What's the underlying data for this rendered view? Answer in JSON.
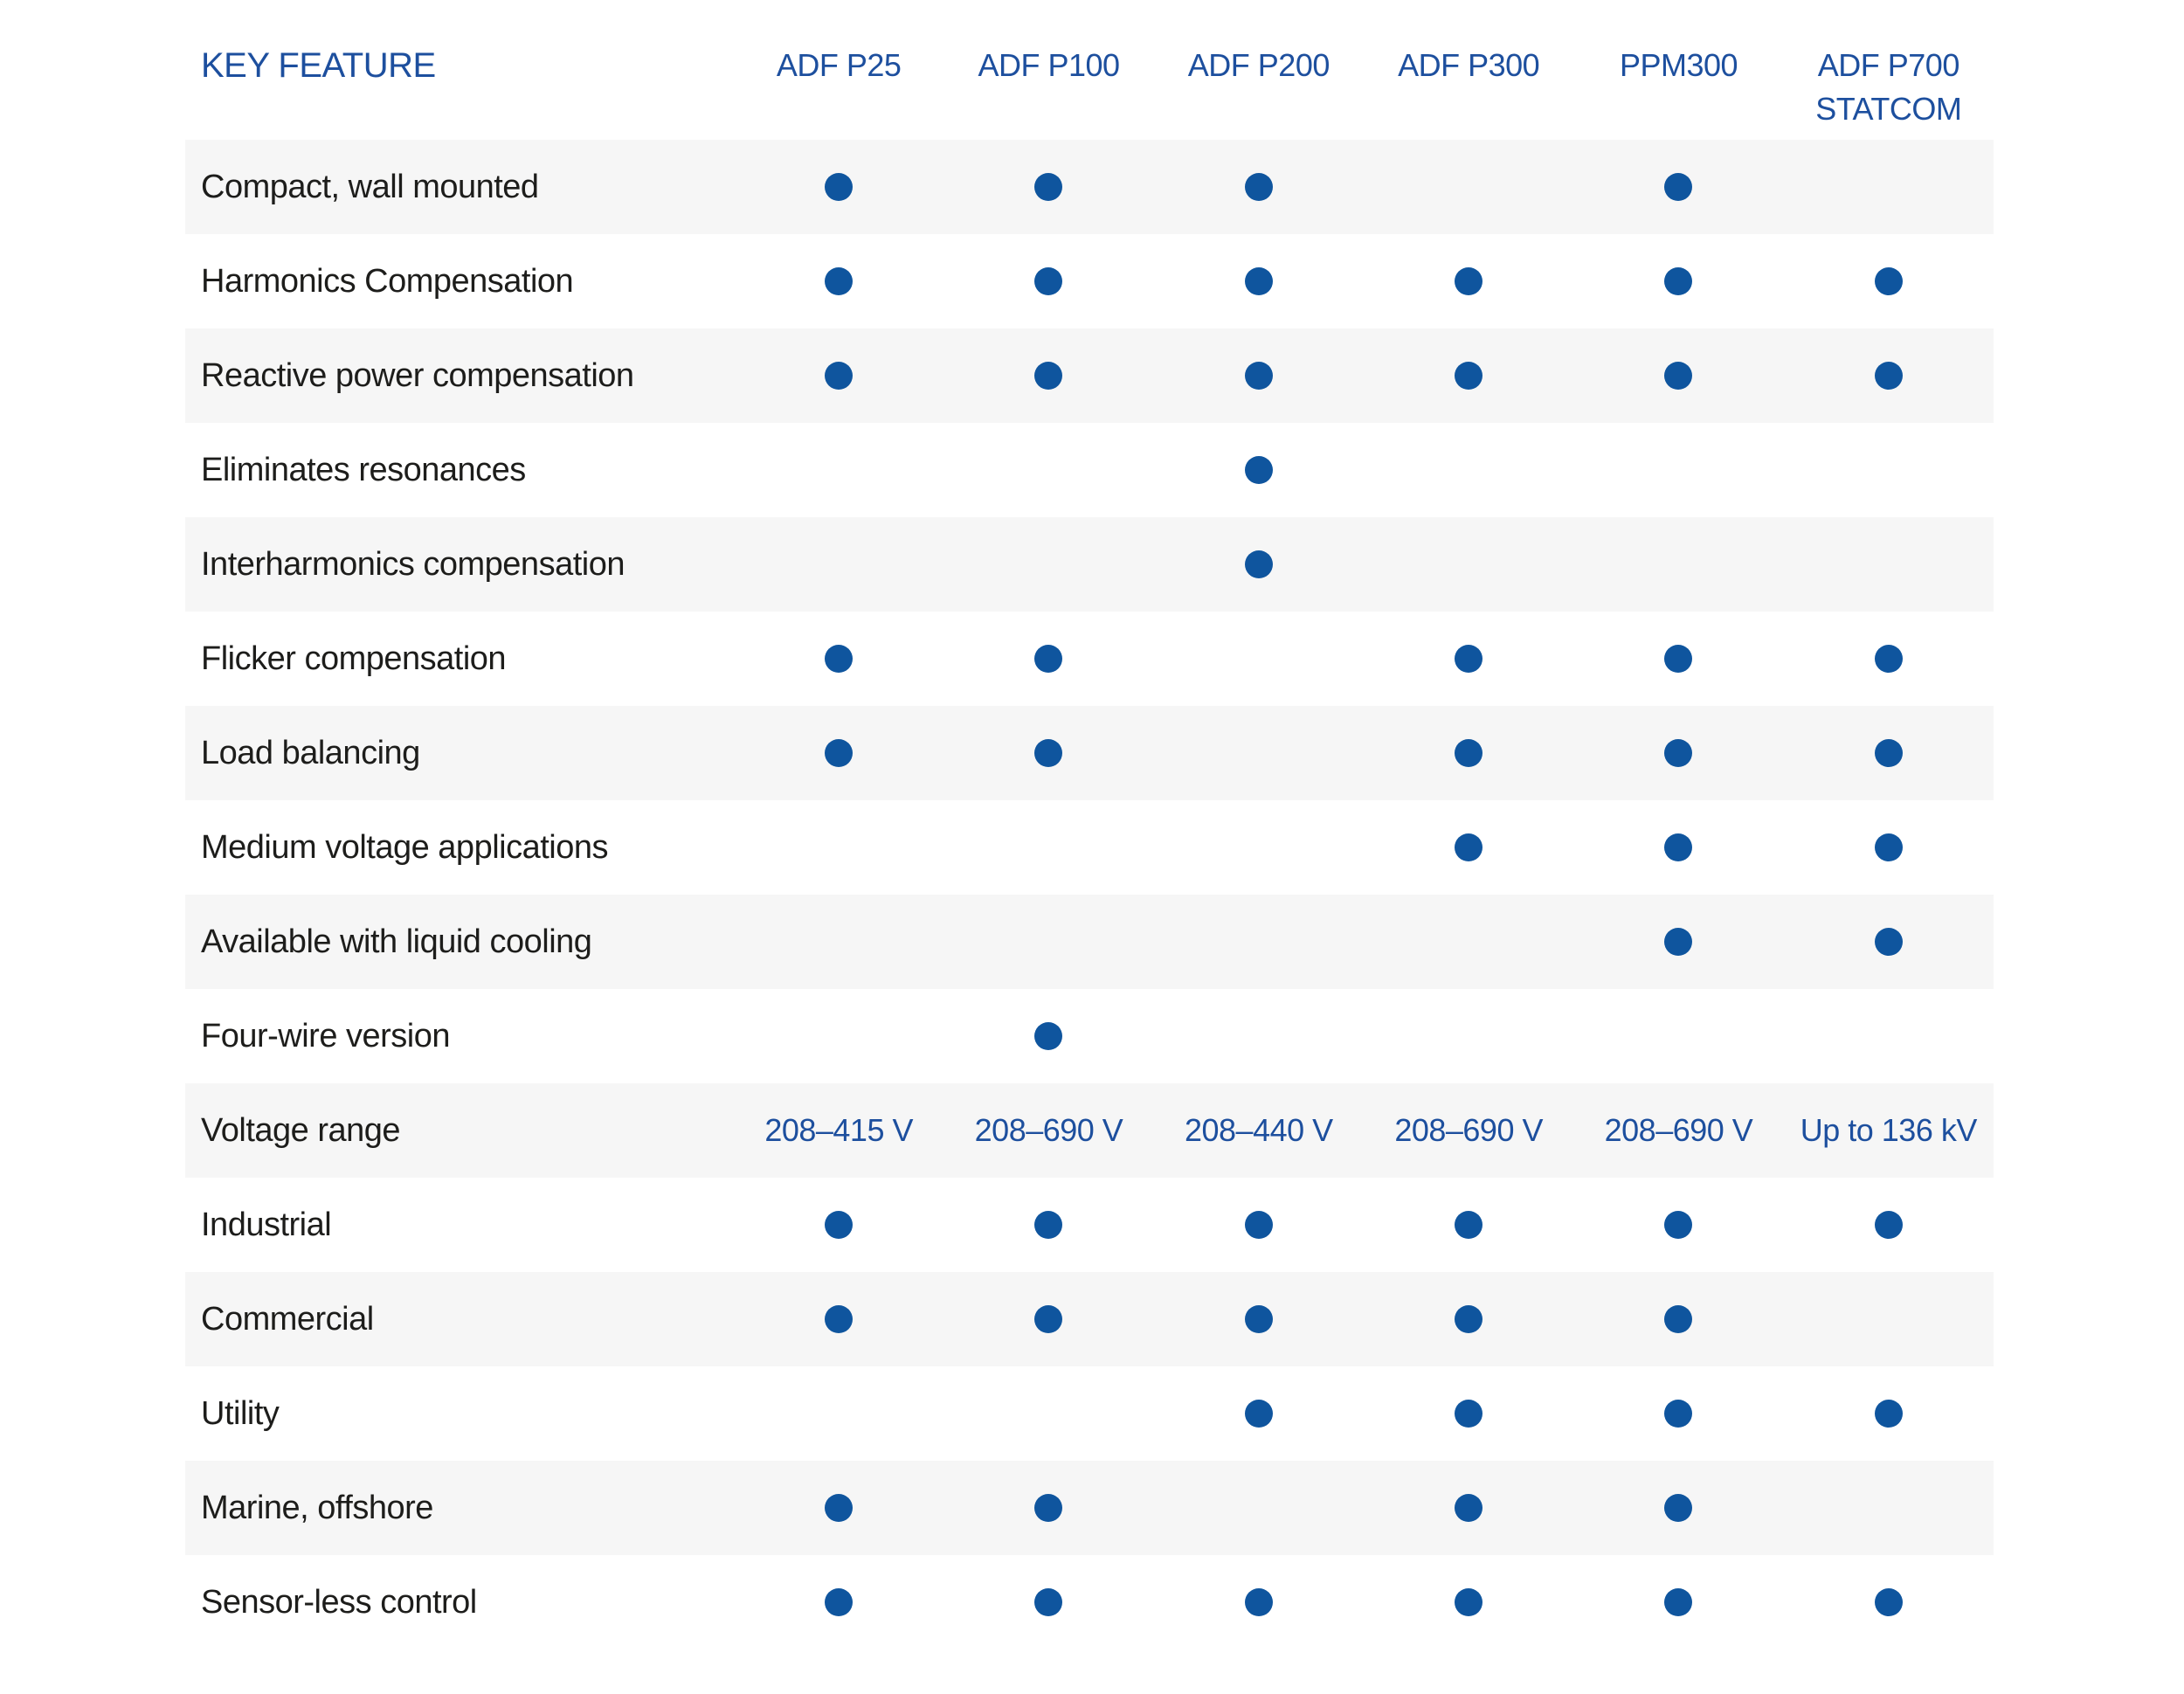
{
  "colors": {
    "brand_blue": "#1d4f9e",
    "dot_blue": "#0f559e",
    "row_stripe": "#f6f6f6",
    "text_dark": "#1d1d1b",
    "background": "#ffffff"
  },
  "header": {
    "feature_heading": "KEY FEATURE",
    "columns": [
      {
        "line1": "ADF P25",
        "line2": ""
      },
      {
        "line1": "ADF P100",
        "line2": ""
      },
      {
        "line1": "ADF P200",
        "line2": ""
      },
      {
        "line1": "ADF P300",
        "line2": ""
      },
      {
        "line1": "PPM300",
        "line2": ""
      },
      {
        "line1": "ADF P700",
        "line2": "STATCOM"
      }
    ]
  },
  "chart_data": {
    "type": "table",
    "title": "KEY FEATURE",
    "columns": [
      "ADF P25",
      "ADF P100",
      "ADF P200",
      "ADF P300",
      "PPM300",
      "ADF P700 STATCOM"
    ],
    "legend_position": "none",
    "notes": "filled dot = feature available for that product",
    "rows": [
      {
        "feature": "Compact, wall mounted",
        "values": [
          true,
          true,
          true,
          false,
          true,
          false
        ]
      },
      {
        "feature": "Harmonics Compensation",
        "values": [
          true,
          true,
          true,
          true,
          true,
          true
        ]
      },
      {
        "feature": "Reactive power compensation",
        "values": [
          true,
          true,
          true,
          true,
          true,
          true
        ]
      },
      {
        "feature": "Eliminates resonances",
        "values": [
          false,
          false,
          true,
          false,
          false,
          false
        ]
      },
      {
        "feature": "Interharmonics compensation",
        "values": [
          false,
          false,
          true,
          false,
          false,
          false
        ]
      },
      {
        "feature": "Flicker compensation",
        "values": [
          true,
          true,
          false,
          true,
          true,
          true
        ]
      },
      {
        "feature": "Load balancing",
        "values": [
          true,
          true,
          false,
          true,
          true,
          true
        ]
      },
      {
        "feature": "Medium voltage applications",
        "values": [
          false,
          false,
          false,
          true,
          true,
          true
        ]
      },
      {
        "feature": "Available with liquid cooling",
        "values": [
          false,
          false,
          false,
          false,
          true,
          true
        ]
      },
      {
        "feature": "Four-wire version",
        "values": [
          false,
          true,
          false,
          false,
          false,
          false
        ]
      },
      {
        "feature": "Voltage range",
        "values": [
          "208–415 V",
          "208–690 V",
          "208–440 V",
          "208–690 V",
          "208–690 V",
          "Up to 136 kV"
        ]
      },
      {
        "feature": "Industrial",
        "values": [
          true,
          true,
          true,
          true,
          true,
          true
        ]
      },
      {
        "feature": "Commercial",
        "values": [
          true,
          true,
          true,
          true,
          true,
          false
        ]
      },
      {
        "feature": "Utility",
        "values": [
          false,
          false,
          true,
          true,
          true,
          true
        ]
      },
      {
        "feature": "Marine, offshore",
        "values": [
          true,
          true,
          false,
          true,
          true,
          false
        ]
      },
      {
        "feature": "Sensor-less control",
        "values": [
          true,
          true,
          true,
          true,
          true,
          true
        ]
      }
    ]
  }
}
